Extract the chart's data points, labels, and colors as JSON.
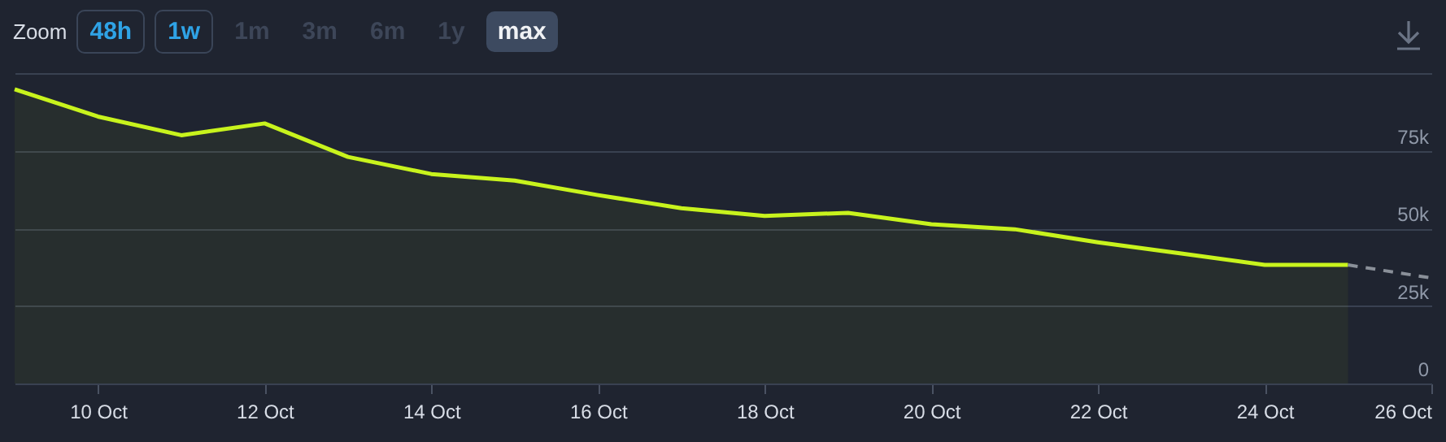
{
  "chart_data": {
    "type": "area",
    "annotations": [
      "Zoom",
      "48h",
      "1w",
      "1m",
      "3m",
      "6m",
      "1y",
      "max"
    ],
    "x": [
      "--10-09",
      "--10-10",
      "--10-11",
      "--10-12",
      "--10-13",
      "--10-14",
      "--10-15",
      "--10-16",
      "--10-17",
      "--10-18",
      "--10-19",
      "--10-20",
      "--10-21",
      "--10-22",
      "--10-23",
      "--10-24",
      "--10-25"
    ],
    "series": [
      {
        "color": "#c8f31d",
        "values": [
          94.8,
          86,
          80,
          83.8,
          73,
          67.5,
          65.4,
          60.7,
          56.5,
          54,
          55,
          51.3,
          49.7,
          45.5,
          41.9,
          38.2,
          38.2
        ]
      },
      {
        "type": "line",
        "color": "#8a9099",
        "line_style": "dashed",
        "x": [
          "--10-25",
          "--10-26"
        ],
        "values": [
          38.2,
          34
        ]
      }
    ],
    "xlim": [
      "--10-09",
      "--10-26"
    ],
    "xticks": [
      {
        "value": "--10-10",
        "label": "10 Oct"
      },
      {
        "value": "--10-12",
        "label": "12 Oct"
      },
      {
        "value": "--10-14",
        "label": "14 Oct"
      },
      {
        "value": "--10-16",
        "label": "16 Oct"
      },
      {
        "value": "--10-18",
        "label": "18 Oct"
      },
      {
        "value": "--10-20",
        "label": "20 Oct"
      },
      {
        "value": "--10-22",
        "label": "22 Oct"
      },
      {
        "value": "--10-24",
        "label": "24 Oct"
      },
      {
        "value": "--10-26",
        "label": "26 Oct"
      }
    ],
    "ylim": [
      0,
      100
    ],
    "yticks": [
      {
        "value": 0,
        "label": "0"
      },
      {
        "value": 25,
        "label": "25k"
      },
      {
        "value": 50,
        "label": "50k"
      },
      {
        "value": 75,
        "label": "75k"
      },
      {
        "value": 100,
        "label": null
      }
    ],
    "grid": "y"
  }
}
